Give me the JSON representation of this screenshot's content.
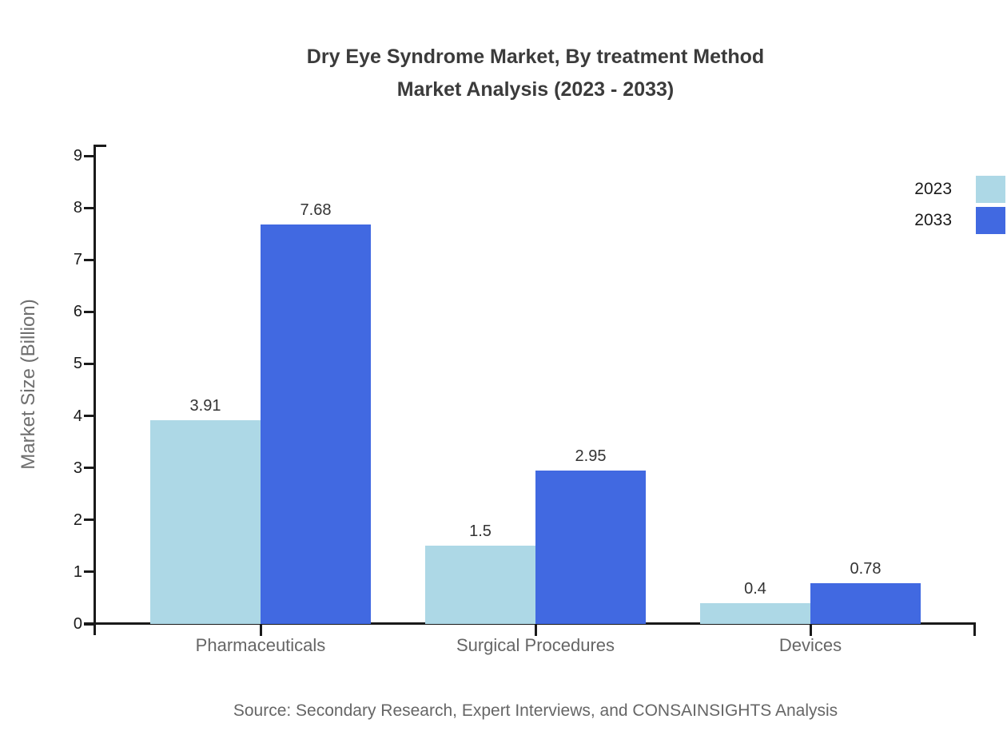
{
  "title": {
    "line1": "Dry Eye Syndrome Market, By treatment Method",
    "line2": "Market Analysis (2023 - 2033)"
  },
  "source": "Source: Secondary Research, Expert Interviews, and CONSAINSIGHTS Analysis",
  "chart_data": {
    "type": "bar",
    "title": "Dry Eye Syndrome Market, By treatment Method Market Analysis (2023 - 2033)",
    "categories": [
      "Pharmaceuticals",
      "Surgical Procedures",
      "Devices"
    ],
    "series": [
      {
        "name": "2023",
        "color": "#ADD8E6",
        "values": [
          3.91,
          1.5,
          0.4
        ]
      },
      {
        "name": "2033",
        "color": "#4169E1",
        "values": [
          7.68,
          2.95,
          0.78
        ]
      }
    ],
    "xlabel": "",
    "ylabel": "Market Size (Billion)",
    "ylim": [
      0,
      9
    ],
    "yticks": [
      0,
      1,
      2,
      3,
      4,
      5,
      6,
      7,
      8,
      9
    ],
    "grid": false,
    "legend_position": "top-right",
    "value_labels_shown": true
  },
  "colors": {
    "series_2023": "#ADD8E6",
    "series_2033": "#4169E1",
    "axis": "#1a1a1a",
    "title_text": "#3b3b3b",
    "muted_text": "#666666"
  }
}
